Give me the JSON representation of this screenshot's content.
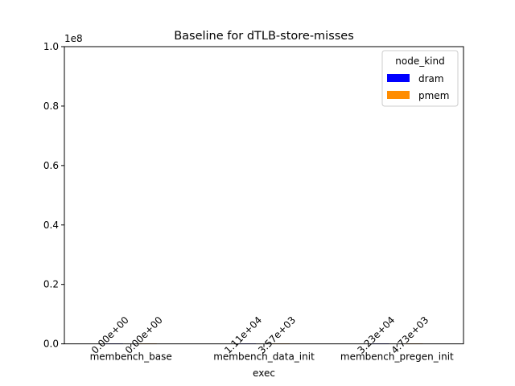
{
  "chart_data": {
    "type": "bar",
    "title": "Baseline for dTLB-store-misses",
    "xlabel": "exec",
    "ylabel": "",
    "y_offset_label": "1e8",
    "ylim": [
      0,
      100000000
    ],
    "yticks": [
      0,
      20000000,
      40000000,
      60000000,
      80000000,
      100000000
    ],
    "ytick_labels": [
      "0.0",
      "0.2",
      "0.4",
      "0.6",
      "0.8",
      "1.0"
    ],
    "categories": [
      "membench_base",
      "membench_data_init",
      "membench_pregen_init"
    ],
    "legend_title": "node_kind",
    "legend_position": "top-right",
    "grid": false,
    "series": [
      {
        "name": "dram",
        "color": "#0000ff",
        "values": [
          0,
          11100,
          32300
        ],
        "labels": [
          "0.00e+00",
          "1.11e+04",
          "3.23e+04"
        ]
      },
      {
        "name": "pmem",
        "color": "#ff8c00",
        "values": [
          0,
          3570,
          4730
        ],
        "labels": [
          "0.00e+00",
          "3.57e+03",
          "4.73e+03"
        ]
      }
    ]
  }
}
